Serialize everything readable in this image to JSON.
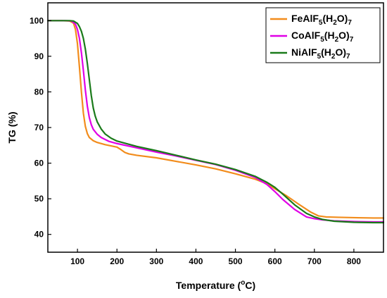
{
  "chart_data": {
    "type": "line",
    "xlabel": "Temperature (°C)",
    "ylabel": "TG (%)",
    "xlim": [
      25,
      875
    ],
    "ylim": [
      35,
      105
    ],
    "xticks": [
      100,
      200,
      300,
      400,
      500,
      600,
      700,
      800
    ],
    "yticks": [
      40,
      50,
      60,
      70,
      80,
      90,
      100
    ],
    "grid": false,
    "legend_position": "top-right",
    "series": [
      {
        "name": "FeAlF5(H2O)7",
        "color": "#f28c1c",
        "x": [
          25,
          60,
          80,
          90,
          95,
          100,
          105,
          110,
          115,
          120,
          125,
          130,
          140,
          150,
          170,
          200,
          210,
          220,
          230,
          250,
          300,
          350,
          400,
          450,
          500,
          550,
          580,
          600,
          630,
          660,
          690,
          710,
          730,
          760,
          800,
          850,
          875
        ],
        "y": [
          100,
          100,
          99.9,
          99.3,
          97.5,
          93.5,
          87,
          80,
          74,
          70.3,
          68.3,
          67.2,
          66.3,
          65.8,
          65.2,
          64.5,
          63.8,
          63,
          62.6,
          62.2,
          61.5,
          60.5,
          59.5,
          58.4,
          57,
          55.5,
          54.2,
          52.8,
          50.8,
          48.5,
          46.3,
          45.2,
          44.9,
          44.8,
          44.7,
          44.6,
          44.6
        ]
      },
      {
        "name": "CoAlF5(H2O)7",
        "color": "#e000e6",
        "x": [
          25,
          70,
          85,
          95,
          100,
          105,
          110,
          115,
          120,
          125,
          130,
          135,
          140,
          150,
          160,
          180,
          200,
          250,
          300,
          350,
          400,
          450,
          500,
          550,
          580,
          600,
          620,
          650,
          680,
          700,
          720,
          750,
          800,
          850,
          875
        ],
        "y": [
          100,
          100,
          99.9,
          99,
          97.5,
          95,
          91,
          86,
          80.5,
          76,
          72.8,
          70.8,
          69.5,
          68.1,
          67.2,
          66.1,
          65.5,
          64.3,
          63.1,
          62,
          60.8,
          59.6,
          58,
          56,
          54,
          52,
          49.8,
          47,
          44.9,
          44.4,
          44.1,
          43.8,
          43.6,
          43.5,
          43.5
        ]
      },
      {
        "name": "NiAlF5(H2O)7",
        "color": "#1a7a1a",
        "x": [
          25,
          80,
          90,
          100,
          105,
          110,
          115,
          120,
          125,
          130,
          135,
          140,
          145,
          150,
          160,
          170,
          185,
          200,
          250,
          300,
          350,
          400,
          450,
          500,
          550,
          580,
          600,
          620,
          650,
          680,
          700,
          720,
          750,
          800,
          850,
          875
        ],
        "y": [
          100,
          100,
          99.9,
          99.2,
          98.3,
          97,
          95,
          92,
          88,
          83.5,
          79,
          75.5,
          73.2,
          71.6,
          69.6,
          68.2,
          67,
          66.2,
          64.7,
          63.5,
          62.2,
          60.9,
          59.7,
          58.2,
          56.3,
          54.6,
          53.2,
          51.3,
          48.3,
          45.9,
          44.9,
          44.2,
          43.7,
          43.4,
          43.3,
          43.3
        ]
      }
    ]
  },
  "legend": {
    "items": [
      {
        "base": "FeAlF",
        "sub1": "5",
        "mid": "(H",
        "sub2": "2",
        "tail": "O)",
        "sub3": "7",
        "color": "#f28c1c"
      },
      {
        "base": "CoAlF",
        "sub1": "5",
        "mid": "(H",
        "sub2": "2",
        "tail": "O)",
        "sub3": "7",
        "color": "#e000e6"
      },
      {
        "base": "NiAlF",
        "sub1": "5",
        "mid": "(H",
        "sub2": "2",
        "tail": "O)",
        "sub3": "7",
        "color": "#1a7a1a"
      }
    ]
  },
  "axes": {
    "x_title_main": "Temperature (",
    "x_title_sup": "o",
    "x_title_end": "C)",
    "y_title": "TG (%)"
  }
}
